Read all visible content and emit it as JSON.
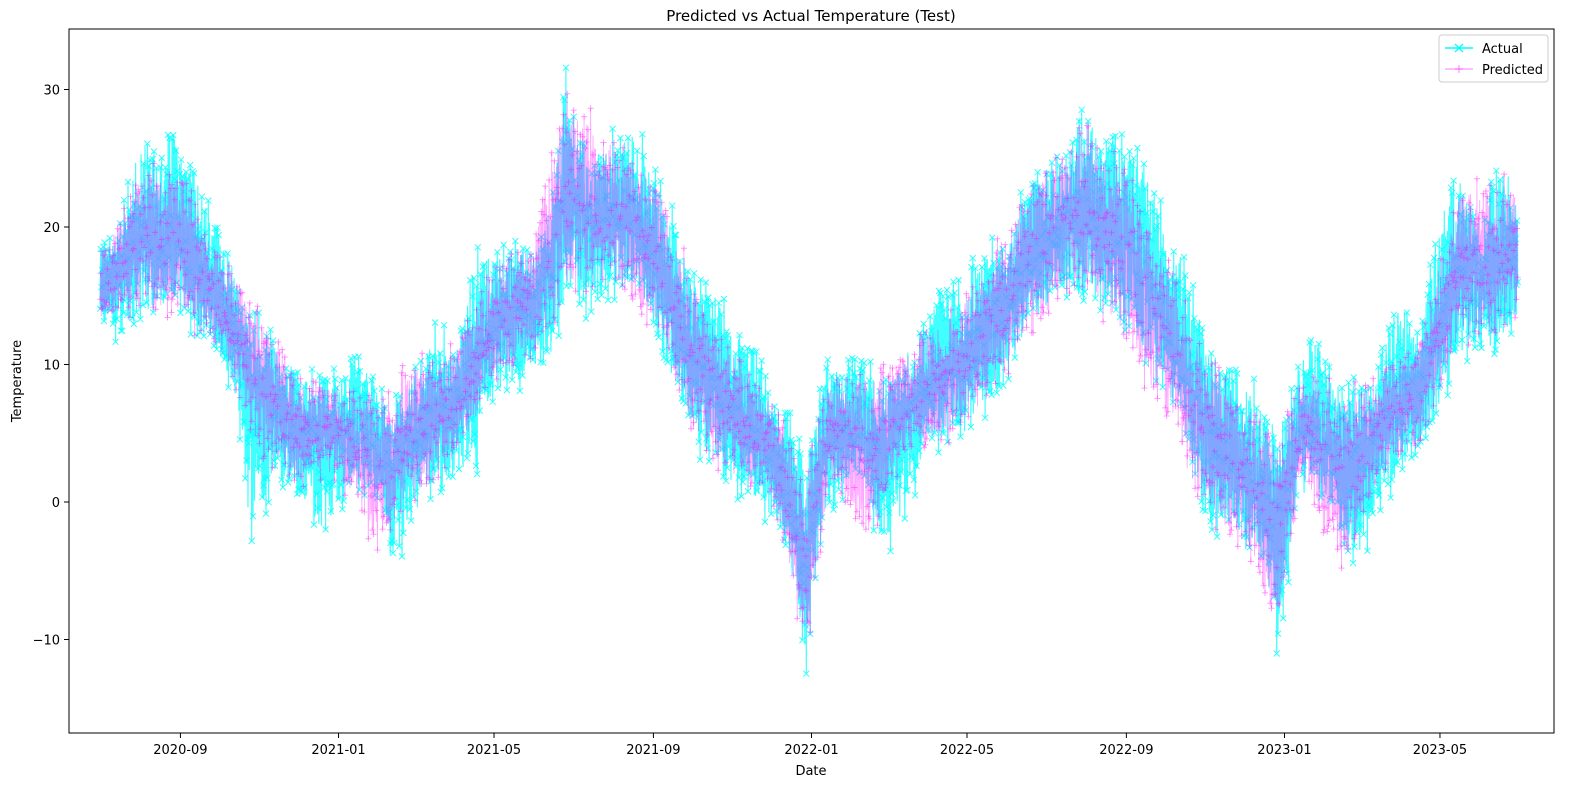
{
  "chart_data": {
    "type": "line",
    "title": "Predicted vs Actual Temperature (Test)",
    "xlabel": "Date",
    "ylabel": "Temperature",
    "x_range": [
      "2020-06-07",
      "2023-07-28"
    ],
    "ylim": [
      -16.8,
      34.4
    ],
    "grid": false,
    "legend_position": "top-right",
    "x_ticks": [
      {
        "date": "2020-09-01",
        "label": "2020-09"
      },
      {
        "date": "2021-01-01",
        "label": "2021-01"
      },
      {
        "date": "2021-05-01",
        "label": "2021-05"
      },
      {
        "date": "2021-09-01",
        "label": "2021-09"
      },
      {
        "date": "2022-01-01",
        "label": "2022-01"
      },
      {
        "date": "2022-05-01",
        "label": "2022-05"
      },
      {
        "date": "2022-09-01",
        "label": "2022-09"
      },
      {
        "date": "2023-01-01",
        "label": "2023-01"
      },
      {
        "date": "2023-05-01",
        "label": "2023-05"
      }
    ],
    "y_ticks": [
      {
        "value": -10,
        "label": "−10"
      },
      {
        "value": 0,
        "label": "0"
      },
      {
        "value": 10,
        "label": "10"
      },
      {
        "value": 20,
        "label": "20"
      },
      {
        "value": 30,
        "label": "30"
      }
    ],
    "date_range": [
      "2020-07-01",
      "2023-06-30"
    ],
    "frequency": "hourly",
    "series": [
      {
        "name": "Actual",
        "color": "#00ffff",
        "marker": "x",
        "envelope": {
          "x": [
            "2020-07-01",
            "2020-07-15",
            "2020-08-01",
            "2020-08-15",
            "2020-08-25",
            "2020-09-15",
            "2020-10-01",
            "2020-10-15",
            "2020-10-25",
            "2020-11-15",
            "2020-12-01",
            "2020-12-20",
            "2021-01-15",
            "2021-02-05",
            "2021-02-10",
            "2021-03-01",
            "2021-03-15",
            "2021-04-01",
            "2021-04-15",
            "2021-05-01",
            "2021-05-15",
            "2021-06-01",
            "2021-06-15",
            "2021-06-25",
            "2021-07-15",
            "2021-08-01",
            "2021-08-15",
            "2021-09-01",
            "2021-09-15",
            "2021-10-01",
            "2021-10-15",
            "2021-11-01",
            "2021-11-15",
            "2021-12-01",
            "2021-12-15",
            "2021-12-28",
            "2022-01-10",
            "2022-01-25",
            "2022-02-10",
            "2022-02-25",
            "2022-03-15",
            "2022-04-01",
            "2022-04-15",
            "2022-05-01",
            "2022-05-15",
            "2022-06-01",
            "2022-06-15",
            "2022-07-01",
            "2022-07-15",
            "2022-07-28",
            "2022-08-15",
            "2022-09-01",
            "2022-09-15",
            "2022-10-01",
            "2022-10-15",
            "2022-11-01",
            "2022-11-15",
            "2022-12-01",
            "2022-12-15",
            "2022-12-27",
            "2023-01-10",
            "2023-01-25",
            "2023-02-10",
            "2023-02-25",
            "2023-03-15",
            "2023-04-01",
            "2023-04-15",
            "2023-05-01",
            "2023-05-15",
            "2023-06-01",
            "2023-06-15",
            "2023-06-30"
          ],
          "upper": [
            19,
            21,
            27.5,
            26,
            29,
            24.5,
            20.5,
            17.5,
            15.5,
            12,
            10.5,
            10,
            12,
            8.5,
            8,
            11,
            14,
            12,
            19.5,
            19,
            20,
            19,
            23.5,
            32,
            26,
            27.5,
            29,
            25,
            22,
            18,
            17.5,
            13.5,
            12.5,
            9,
            8.5,
            4,
            11,
            10.5,
            11.5,
            10,
            12.5,
            14.5,
            17,
            17,
            19.5,
            20,
            24,
            25.5,
            26,
            30,
            28,
            27.5,
            26.5,
            21,
            19,
            13.5,
            11,
            10.5,
            8,
            7.5,
            11,
            13.5,
            10,
            9.5,
            11,
            16.5,
            13,
            22.5,
            25,
            22,
            25.5,
            25
          ],
          "lower": [
            13,
            11,
            12.5,
            13,
            13,
            11,
            10,
            6,
            -4.5,
            1,
            -1,
            -3,
            0,
            -1,
            -6.5,
            -2,
            0,
            1,
            0,
            7,
            7,
            9,
            9,
            13,
            13,
            14,
            15,
            12,
            8,
            3.5,
            1,
            0,
            -1,
            -2,
            -6,
            -14.5,
            -2,
            0,
            2,
            -6,
            -2,
            3,
            4,
            4,
            6,
            8,
            11,
            13,
            14,
            13,
            13,
            12,
            9,
            7,
            4,
            -3,
            -3,
            -5,
            -5,
            -13,
            -1,
            0,
            -2,
            -7,
            -1,
            0.5,
            3,
            5,
            9,
            10,
            10,
            12
          ]
        }
      },
      {
        "name": "Predicted",
        "color": "#ff00ff",
        "marker": "+",
        "envelope": {
          "x": [
            "2020-07-01",
            "2020-08-01",
            "2020-09-01",
            "2020-10-01",
            "2020-11-01",
            "2020-12-01",
            "2021-01-01",
            "2021-02-01",
            "2021-03-01",
            "2021-04-01",
            "2021-05-01",
            "2021-06-01",
            "2021-06-25",
            "2021-08-01",
            "2021-09-01",
            "2021-10-01",
            "2021-11-01",
            "2021-12-01",
            "2021-12-28",
            "2022-01-15",
            "2022-02-15",
            "2022-03-15",
            "2022-04-15",
            "2022-05-15",
            "2022-06-15",
            "2022-07-15",
            "2022-08-01",
            "2022-09-01",
            "2022-10-01",
            "2022-11-01",
            "2022-12-01",
            "2022-12-27",
            "2023-01-15",
            "2023-02-15",
            "2023-03-15",
            "2023-04-15",
            "2023-05-15",
            "2023-06-30"
          ],
          "upper": [
            18,
            25,
            24.5,
            19,
            14.5,
            9.5,
            9.5,
            8,
            11,
            12,
            18,
            20,
            31,
            27,
            24.5,
            17,
            12,
            8,
            3,
            10,
            10,
            12,
            14,
            18,
            23,
            27,
            28,
            25,
            19,
            12,
            8,
            6,
            10,
            9,
            10,
            12,
            24,
            24
          ],
          "lower": [
            13,
            13,
            13,
            10,
            3,
            1,
            1,
            -4,
            0,
            2,
            8,
            10,
            14,
            15,
            12,
            4,
            1,
            0,
            -12,
            1,
            -4,
            3,
            4,
            6,
            11,
            14,
            14,
            11,
            5,
            -2,
            -4,
            -10,
            1,
            -6,
            1,
            4,
            10,
            12
          ]
        }
      }
    ]
  }
}
